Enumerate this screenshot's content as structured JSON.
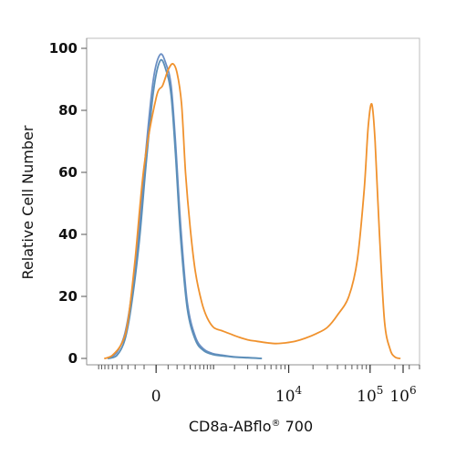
{
  "chart_data": {
    "type": "line",
    "title": "",
    "xlabel_main": "CD8a-ABflo",
    "xlabel_sup": "®",
    "xlabel_suffix": " 700",
    "ylabel": "Relative Cell Number",
    "x_scale": "biexponential",
    "ylim": [
      0,
      100
    ],
    "y_ticks": [
      0,
      20,
      40,
      60,
      80,
      100
    ],
    "x_ticks": [
      {
        "base": "0",
        "exp": ""
      },
      {
        "base": "10",
        "exp": "4"
      },
      {
        "base": "10",
        "exp": "5"
      },
      {
        "base": "10",
        "exp": "6"
      }
    ],
    "grid": false,
    "legend": "none",
    "series": [
      {
        "color": "#6b8fc4",
        "x": [
          -700,
          -500,
          -350,
          -250,
          -150,
          -80,
          -20,
          30,
          80,
          130,
          180,
          250,
          350,
          500,
          700,
          1000,
          1400,
          2000,
          3000,
          4500
        ],
        "y": [
          0,
          2,
          8,
          20,
          42,
          68,
          90,
          98,
          95,
          88,
          70,
          42,
          18,
          7,
          3,
          1.5,
          1,
          0.5,
          0.3,
          0
        ]
      },
      {
        "color": "#5b8fb8",
        "x": [
          -700,
          -500,
          -350,
          -250,
          -150,
          -80,
          -20,
          30,
          80,
          130,
          180,
          250,
          350,
          500,
          700,
          1000,
          1400,
          2000,
          3000,
          4500
        ],
        "y": [
          0,
          1,
          6,
          17,
          38,
          63,
          86,
          96,
          93,
          85,
          66,
          38,
          16,
          6,
          2.5,
          1.2,
          0.8,
          0.4,
          0.2,
          0
        ]
      },
      {
        "color": "#f0922e",
        "x": [
          -800,
          -600,
          -400,
          -300,
          -200,
          -100,
          0,
          50,
          100,
          150,
          200,
          260,
          320,
          400,
          500,
          650,
          800,
          1000,
          1300,
          1700,
          2200,
          3000,
          4000,
          5500,
          7000,
          9000,
          12000,
          16000,
          22000,
          30000,
          40000,
          55000,
          70000,
          85000,
          95000,
          105000,
          115000,
          130000,
          150000,
          175000,
          200000,
          230000
        ],
        "y": [
          0,
          1,
          5,
          12,
          32,
          62,
          84,
          88,
          93,
          95,
          92,
          82,
          60,
          42,
          28,
          18,
          13,
          10,
          9,
          8,
          7,
          6,
          5.5,
          5,
          4.8,
          5,
          5.5,
          6.5,
          8,
          10,
          14,
          20,
          32,
          55,
          75,
          82,
          70,
          40,
          12,
          3,
          0.5,
          0
        ]
      }
    ]
  }
}
